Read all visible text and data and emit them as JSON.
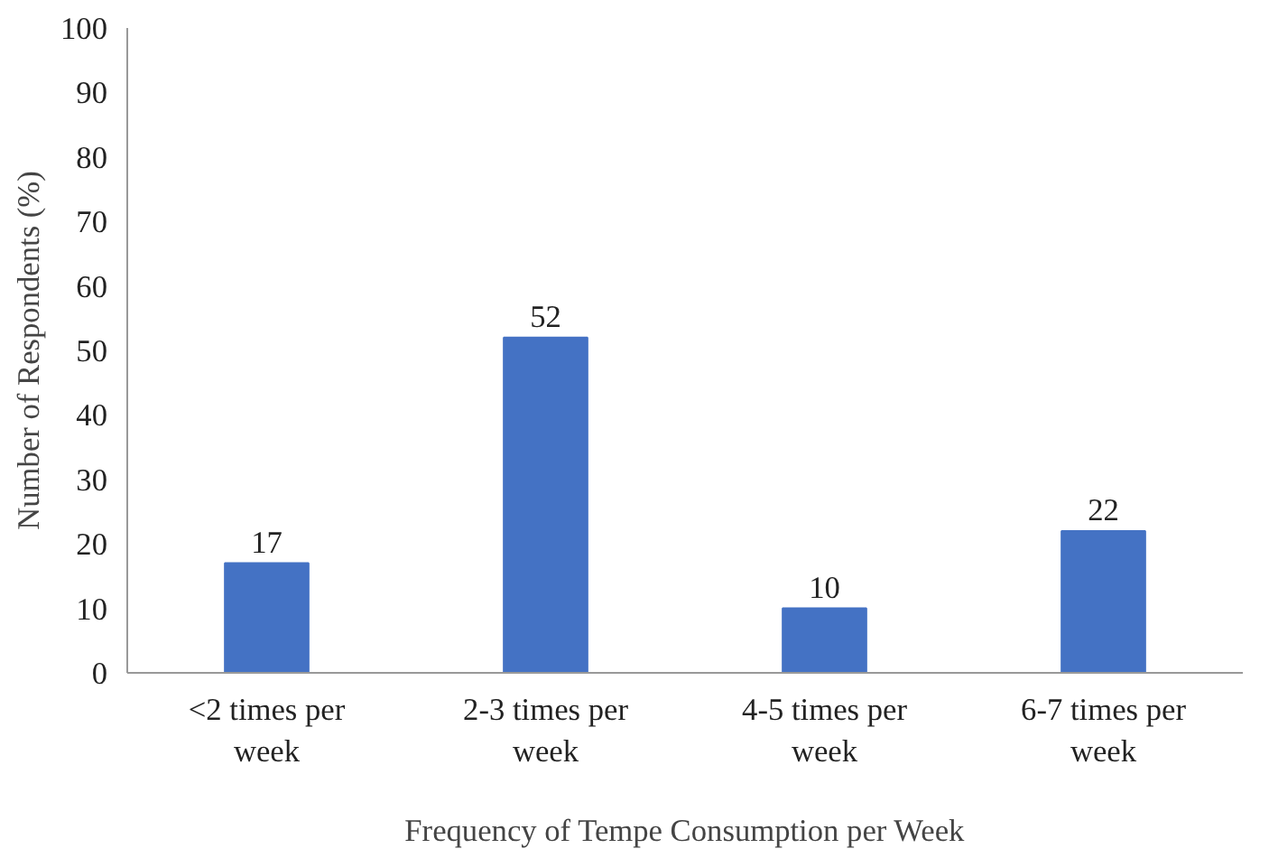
{
  "chart_data": {
    "type": "bar",
    "xlabel": "Frequency of Tempe Consumption per Week",
    "ylabel": "Number of Respondents (%)",
    "categories": [
      "<2 times per week",
      "2-3 times per week",
      "4-5 times per week",
      "6-7 times per week"
    ],
    "values": [
      17,
      52,
      10,
      22
    ],
    "color": "#4472c4",
    "ylim": [
      0,
      100
    ],
    "yticks": [
      0,
      10,
      20,
      30,
      40,
      50,
      60,
      70,
      80,
      90,
      100
    ],
    "grid": false,
    "data_labels": true
  }
}
